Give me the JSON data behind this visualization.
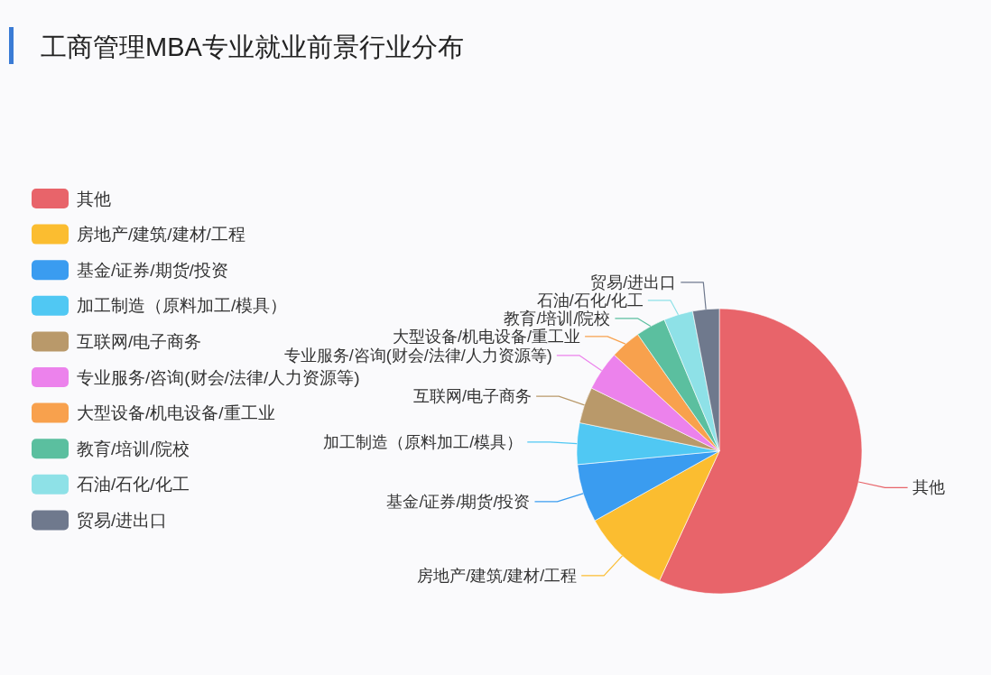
{
  "chart_data": {
    "type": "pie",
    "title": "工商管理MBA专业就业前景行业分布",
    "categories": [
      "其他",
      "房地产/建筑/建材/工程",
      "基金/证券/期货/投资",
      "加工制造（原料加工/模具）",
      "互联网/电子商务",
      "专业服务/咨询(财会/法律/人力资源等)",
      "大型设备/机电设备/重工业",
      "教育/培训/院校",
      "石油/石化/化工",
      "贸易/进出口"
    ],
    "values": [
      56.9,
      10.0,
      6.6,
      4.7,
      4.1,
      4.5,
      3.5,
      3.4,
      3.3,
      3.0
    ],
    "colors": [
      "#e8646a",
      "#fbbd30",
      "#3a9cf0",
      "#50c8f3",
      "#b9996a",
      "#ec82ec",
      "#f8a14d",
      "#5bbf9f",
      "#8ee1e7",
      "#6f798d"
    ],
    "legend": "left"
  }
}
